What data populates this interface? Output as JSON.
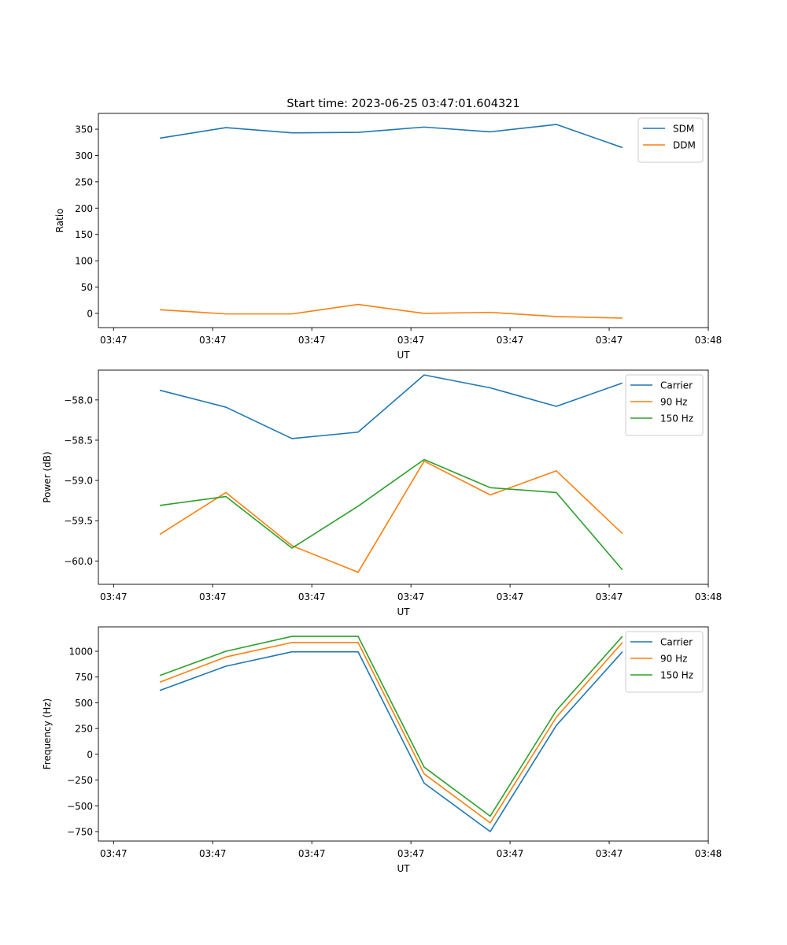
{
  "figure": {
    "title": "Start time: 2023-06-25 03:47:01.604321"
  },
  "chart_data": [
    {
      "type": "line",
      "xlabel": "UT",
      "ylabel": "Ratio",
      "x_tick_labels": [
        "03:47",
        "03:47",
        "03:47",
        "03:47",
        "03:47",
        "03:47",
        "03:48"
      ],
      "xlim": [
        -0.35,
        8.85
      ],
      "ylim": [
        -27,
        380
      ],
      "yticks": [
        0,
        50,
        100,
        150,
        200,
        250,
        300,
        350
      ],
      "ytick_labels": [
        "0",
        "50",
        "100",
        "150",
        "200",
        "250",
        "300",
        "350"
      ],
      "legend_position": "top-right",
      "grid": false,
      "series": [
        {
          "name": "SDM",
          "color": "#1f77b4",
          "values": [
            333,
            353,
            343,
            344,
            354,
            345,
            359,
            315
          ]
        },
        {
          "name": "DDM",
          "color": "#ff7f0e",
          "values": [
            7,
            -1,
            -1,
            17,
            0,
            2,
            -6,
            -9
          ]
        }
      ]
    },
    {
      "type": "line",
      "xlabel": "UT",
      "ylabel": "Power (dB)",
      "x_tick_labels": [
        "03:47",
        "03:47",
        "03:47",
        "03:47",
        "03:47",
        "03:47",
        "03:48"
      ],
      "xlim": [
        -0.35,
        8.85
      ],
      "ylim": [
        -60.29,
        -57.63
      ],
      "yticks": [
        -60.0,
        -59.5,
        -59.0,
        -58.5,
        -58.0
      ],
      "ytick_labels": [
        "−60.0",
        "−59.5",
        "−59.0",
        "−58.5",
        "−58.0"
      ],
      "legend_position": "top-right",
      "grid": false,
      "series": [
        {
          "name": "Carrier",
          "color": "#1f77b4",
          "values": [
            -57.88,
            -58.09,
            -58.48,
            -58.4,
            -57.69,
            -57.85,
            -58.08,
            -57.79
          ]
        },
        {
          "name": "90 Hz",
          "color": "#ff7f0e",
          "values": [
            -59.67,
            -59.15,
            -59.81,
            -60.14,
            -58.76,
            -59.18,
            -58.88,
            -59.66
          ]
        },
        {
          "name": "150 Hz",
          "color": "#2ca02c",
          "values": [
            -59.31,
            -59.2,
            -59.84,
            -59.32,
            -58.74,
            -59.09,
            -59.15,
            -60.11
          ]
        }
      ]
    },
    {
      "type": "line",
      "xlabel": "UT",
      "ylabel": "Frequency (Hz)",
      "x_tick_labels": [
        "03:47",
        "03:47",
        "03:47",
        "03:47",
        "03:47",
        "03:47",
        "03:48"
      ],
      "xlim": [
        -0.35,
        8.85
      ],
      "ylim": [
        -842,
        1237
      ],
      "yticks": [
        -750,
        -500,
        -250,
        0,
        250,
        500,
        750,
        1000
      ],
      "ytick_labels": [
        "−750",
        "−500",
        "−250",
        "0",
        "250",
        "500",
        "750",
        "1000"
      ],
      "legend_position": "top-right",
      "grid": false,
      "series": [
        {
          "name": "Carrier",
          "color": "#1f77b4",
          "values": [
            620,
            855,
            995,
            995,
            -280,
            -750,
            280,
            995
          ]
        },
        {
          "name": "90 Hz",
          "color": "#ff7f0e",
          "values": [
            700,
            945,
            1085,
            1085,
            -190,
            -665,
            360,
            1085
          ]
        },
        {
          "name": "150 Hz",
          "color": "#2ca02c",
          "values": [
            765,
            1000,
            1145,
            1145,
            -125,
            -600,
            425,
            1145
          ]
        }
      ]
    }
  ]
}
